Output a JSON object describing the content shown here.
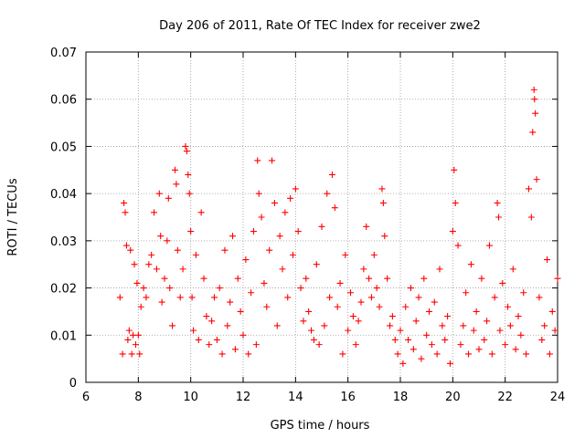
{
  "chart_data": {
    "type": "scatter",
    "title": "Day 206 of 2011, Rate Of TEC Index for receiver zwe2",
    "xlabel": "GPS time / hours",
    "ylabel": "ROTI / TECUs",
    "xlim": [
      6,
      24
    ],
    "ylim": [
      0,
      0.07
    ],
    "x_ticks": [
      6,
      8,
      10,
      12,
      14,
      16,
      18,
      20,
      22,
      24
    ],
    "x_tick_labels": [
      "6",
      "8",
      "10",
      "12",
      "14",
      "16",
      "18",
      "20",
      "22",
      "24"
    ],
    "y_ticks": [
      0,
      0.01,
      0.02,
      0.03,
      0.04,
      0.05,
      0.06,
      0.07
    ],
    "y_tick_labels": [
      "0",
      "0.01",
      "0.02",
      "0.03",
      "0.04",
      "0.05",
      "0.06",
      "0.07"
    ],
    "grid": true,
    "marker": "+",
    "series": [
      {
        "name": "ROTI",
        "color": "#ff0000",
        "points": [
          [
            7.3,
            0.018
          ],
          [
            7.4,
            0.006
          ],
          [
            7.45,
            0.038
          ],
          [
            7.5,
            0.036
          ],
          [
            7.55,
            0.029
          ],
          [
            7.6,
            0.009
          ],
          [
            7.65,
            0.011
          ],
          [
            7.7,
            0.028
          ],
          [
            7.75,
            0.006
          ],
          [
            7.8,
            0.01
          ],
          [
            7.85,
            0.025
          ],
          [
            7.9,
            0.008
          ],
          [
            7.95,
            0.021
          ],
          [
            8.0,
            0.01
          ],
          [
            8.05,
            0.006
          ],
          [
            8.1,
            0.016
          ],
          [
            8.2,
            0.02
          ],
          [
            8.3,
            0.018
          ],
          [
            8.4,
            0.025
          ],
          [
            8.5,
            0.027
          ],
          [
            8.6,
            0.036
          ],
          [
            8.7,
            0.024
          ],
          [
            8.8,
            0.04
          ],
          [
            8.85,
            0.031
          ],
          [
            8.9,
            0.017
          ],
          [
            9.0,
            0.022
          ],
          [
            9.1,
            0.03
          ],
          [
            9.15,
            0.039
          ],
          [
            9.2,
            0.02
          ],
          [
            9.3,
            0.012
          ],
          [
            9.4,
            0.045
          ],
          [
            9.45,
            0.042
          ],
          [
            9.5,
            0.028
          ],
          [
            9.6,
            0.018
          ],
          [
            9.7,
            0.024
          ],
          [
            9.8,
            0.05
          ],
          [
            9.85,
            0.049
          ],
          [
            9.9,
            0.044
          ],
          [
            9.95,
            0.04
          ],
          [
            10.0,
            0.032
          ],
          [
            10.05,
            0.018
          ],
          [
            10.1,
            0.011
          ],
          [
            10.2,
            0.027
          ],
          [
            10.3,
            0.009
          ],
          [
            10.4,
            0.036
          ],
          [
            10.5,
            0.022
          ],
          [
            10.6,
            0.014
          ],
          [
            10.7,
            0.008
          ],
          [
            10.8,
            0.013
          ],
          [
            10.9,
            0.018
          ],
          [
            11.0,
            0.009
          ],
          [
            11.1,
            0.02
          ],
          [
            11.2,
            0.006
          ],
          [
            11.3,
            0.028
          ],
          [
            11.4,
            0.012
          ],
          [
            11.5,
            0.017
          ],
          [
            11.6,
            0.031
          ],
          [
            11.7,
            0.007
          ],
          [
            11.8,
            0.022
          ],
          [
            11.9,
            0.015
          ],
          [
            12.0,
            0.01
          ],
          [
            12.1,
            0.026
          ],
          [
            12.2,
            0.006
          ],
          [
            12.3,
            0.019
          ],
          [
            12.4,
            0.032
          ],
          [
            12.5,
            0.008
          ],
          [
            12.55,
            0.047
          ],
          [
            12.6,
            0.04
          ],
          [
            12.7,
            0.035
          ],
          [
            12.8,
            0.021
          ],
          [
            12.9,
            0.016
          ],
          [
            13.0,
            0.028
          ],
          [
            13.1,
            0.047
          ],
          [
            13.2,
            0.038
          ],
          [
            13.3,
            0.012
          ],
          [
            13.4,
            0.031
          ],
          [
            13.5,
            0.024
          ],
          [
            13.6,
            0.036
          ],
          [
            13.7,
            0.018
          ],
          [
            13.8,
            0.039
          ],
          [
            13.9,
            0.027
          ],
          [
            14.0,
            0.041
          ],
          [
            14.1,
            0.032
          ],
          [
            14.2,
            0.02
          ],
          [
            14.3,
            0.013
          ],
          [
            14.4,
            0.022
          ],
          [
            14.5,
            0.015
          ],
          [
            14.6,
            0.011
          ],
          [
            14.7,
            0.009
          ],
          [
            14.8,
            0.025
          ],
          [
            14.9,
            0.008
          ],
          [
            15.0,
            0.033
          ],
          [
            15.1,
            0.012
          ],
          [
            15.2,
            0.04
          ],
          [
            15.3,
            0.018
          ],
          [
            15.4,
            0.044
          ],
          [
            15.5,
            0.037
          ],
          [
            15.6,
            0.016
          ],
          [
            15.7,
            0.021
          ],
          [
            15.8,
            0.006
          ],
          [
            15.9,
            0.027
          ],
          [
            16.0,
            0.011
          ],
          [
            16.1,
            0.019
          ],
          [
            16.2,
            0.014
          ],
          [
            16.3,
            0.008
          ],
          [
            16.4,
            0.013
          ],
          [
            16.5,
            0.017
          ],
          [
            16.6,
            0.024
          ],
          [
            16.7,
            0.033
          ],
          [
            16.8,
            0.022
          ],
          [
            16.9,
            0.018
          ],
          [
            17.0,
            0.027
          ],
          [
            17.1,
            0.02
          ],
          [
            17.2,
            0.016
          ],
          [
            17.3,
            0.041
          ],
          [
            17.35,
            0.038
          ],
          [
            17.4,
            0.031
          ],
          [
            17.5,
            0.022
          ],
          [
            17.6,
            0.012
          ],
          [
            17.7,
            0.014
          ],
          [
            17.8,
            0.009
          ],
          [
            17.9,
            0.006
          ],
          [
            18.0,
            0.011
          ],
          [
            18.1,
            0.004
          ],
          [
            18.2,
            0.016
          ],
          [
            18.3,
            0.009
          ],
          [
            18.4,
            0.02
          ],
          [
            18.5,
            0.007
          ],
          [
            18.6,
            0.013
          ],
          [
            18.7,
            0.018
          ],
          [
            18.8,
            0.005
          ],
          [
            18.9,
            0.022
          ],
          [
            19.0,
            0.01
          ],
          [
            19.1,
            0.015
          ],
          [
            19.2,
            0.008
          ],
          [
            19.3,
            0.017
          ],
          [
            19.4,
            0.006
          ],
          [
            19.5,
            0.024
          ],
          [
            19.6,
            0.012
          ],
          [
            19.7,
            0.009
          ],
          [
            19.8,
            0.014
          ],
          [
            19.9,
            0.004
          ],
          [
            20.0,
            0.032
          ],
          [
            20.05,
            0.045
          ],
          [
            20.1,
            0.038
          ],
          [
            20.2,
            0.029
          ],
          [
            20.3,
            0.008
          ],
          [
            20.4,
            0.012
          ],
          [
            20.5,
            0.019
          ],
          [
            20.6,
            0.006
          ],
          [
            20.7,
            0.025
          ],
          [
            20.8,
            0.011
          ],
          [
            20.9,
            0.015
          ],
          [
            21.0,
            0.007
          ],
          [
            21.1,
            0.022
          ],
          [
            21.2,
            0.009
          ],
          [
            21.3,
            0.013
          ],
          [
            21.4,
            0.029
          ],
          [
            21.5,
            0.006
          ],
          [
            21.6,
            0.018
          ],
          [
            21.7,
            0.038
          ],
          [
            21.75,
            0.035
          ],
          [
            21.8,
            0.011
          ],
          [
            21.9,
            0.021
          ],
          [
            22.0,
            0.008
          ],
          [
            22.1,
            0.016
          ],
          [
            22.2,
            0.012
          ],
          [
            22.3,
            0.024
          ],
          [
            22.4,
            0.007
          ],
          [
            22.5,
            0.014
          ],
          [
            22.6,
            0.01
          ],
          [
            22.7,
            0.019
          ],
          [
            22.8,
            0.006
          ],
          [
            22.9,
            0.041
          ],
          [
            23.0,
            0.035
          ],
          [
            23.05,
            0.053
          ],
          [
            23.1,
            0.062
          ],
          [
            23.12,
            0.06
          ],
          [
            23.15,
            0.057
          ],
          [
            23.2,
            0.043
          ],
          [
            23.3,
            0.018
          ],
          [
            23.4,
            0.009
          ],
          [
            23.5,
            0.012
          ],
          [
            23.6,
            0.026
          ],
          [
            23.7,
            0.006
          ],
          [
            23.8,
            0.015
          ],
          [
            23.9,
            0.011
          ],
          [
            24.0,
            0.022
          ]
        ]
      }
    ]
  }
}
